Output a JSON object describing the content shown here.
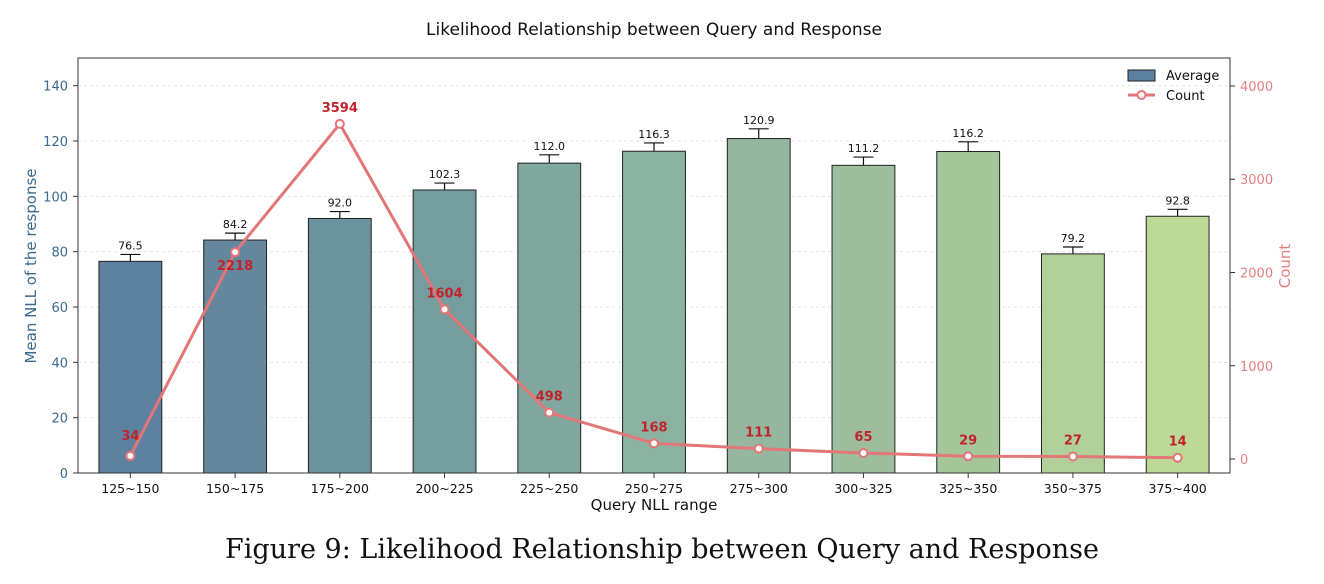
{
  "caption": "Figure 9: Likelihood Relationship between Query and Response",
  "chart_data": {
    "type": "bar",
    "title": "Likelihood Relationship between Query and Response",
    "xlabel": "Query NLL range",
    "ylabel": "Mean NLL of the response",
    "y2label": "Count",
    "ylim": [
      0,
      150
    ],
    "y2lim": [
      -150,
      4300
    ],
    "yticks": [
      0,
      20,
      40,
      60,
      80,
      100,
      120,
      140
    ],
    "y2ticks": [
      0,
      1000,
      2000,
      3000,
      4000
    ],
    "grid": true,
    "legend_position": "top-right",
    "categories": [
      "125~150",
      "150~175",
      "175~200",
      "200~225",
      "225~250",
      "250~275",
      "275~300",
      "300~325",
      "325~350",
      "350~375",
      "375~400"
    ],
    "series": [
      {
        "name": "Average",
        "kind": "bar",
        "axis": "left",
        "values": [
          76.5,
          84.2,
          92.0,
          102.3,
          112.0,
          116.3,
          120.9,
          111.2,
          116.2,
          79.2,
          92.8
        ],
        "labels": [
          "76.5",
          "84.2",
          "92.0",
          "102.3",
          "112.0",
          "116.3",
          "120.9",
          "111.2",
          "116.2",
          "79.2",
          "92.8"
        ],
        "error": [
          2.5,
          2.5,
          2.5,
          2.5,
          3.0,
          3.0,
          3.5,
          3.0,
          3.5,
          2.5,
          2.5
        ],
        "colors": [
          "#5e81a0",
          "#64879e",
          "#6b929d",
          "#759d9d",
          "#80a89f",
          "#8bb1a0",
          "#95b69f",
          "#9dbd9c",
          "#a5c69b",
          "#b1cf99",
          "#bcd997"
        ]
      },
      {
        "name": "Count",
        "kind": "line",
        "axis": "right",
        "values": [
          34,
          2218,
          3594,
          1604,
          498,
          168,
          111,
          65,
          29,
          27,
          14
        ],
        "labels": [
          "34",
          "2218",
          "3594",
          "1604",
          "498",
          "168",
          "111",
          "65",
          "29",
          "27",
          "14"
        ],
        "color": "#e37676",
        "label_color": "#c0242a"
      }
    ],
    "axis_colors": {
      "left": "#3b6a8f",
      "right": "#e57f7f",
      "grid": "#e6e6e6",
      "frame": "#333333"
    }
  }
}
